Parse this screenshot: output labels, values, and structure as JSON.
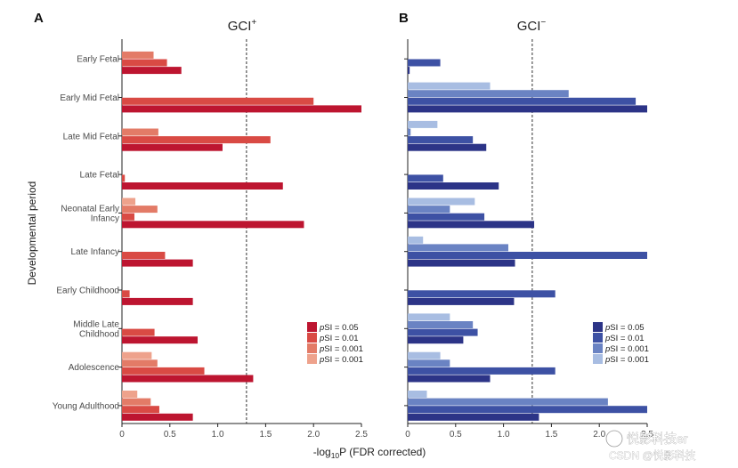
{
  "chart_data": {
    "type": "bar",
    "orientation": "horizontal",
    "ylabel": "Developmental period",
    "xlabel_main": "-log",
    "xlabel_sub": "10",
    "xlabel_rest": "P (FDR corrected)",
    "xlim": [
      0,
      2.5
    ],
    "x_ticks": [
      "0",
      "0.5",
      "1.0",
      "1.5",
      "2.0",
      "2.5"
    ],
    "threshold": 1.3,
    "categories": [
      [
        "Early Fetal"
      ],
      [
        "Early Mid Fetal"
      ],
      [
        "Late Mid Fetal"
      ],
      [
        "Late Fetal"
      ],
      [
        "Neonatal Early",
        "Infancy"
      ],
      [
        "Late Infancy"
      ],
      [
        "Early Childhood"
      ],
      [
        "Middle Late",
        "Childhood"
      ],
      [
        "Adolescence"
      ],
      [
        "Young Adulthood"
      ]
    ],
    "series_labels": [
      "0.05",
      "0.01",
      "0.001",
      "0.001"
    ],
    "legend_prefix": "p",
    "legend_prefix2": "SI = ",
    "panels": [
      {
        "letter": "A",
        "title_main": "GCI",
        "title_sup": "+",
        "colors": [
          "#bd1530",
          "#d94a44",
          "#e37b67",
          "#eea28c"
        ],
        "values": [
          [
            0.62,
            0.47,
            0.33,
            0
          ],
          [
            2.5,
            2.0,
            0,
            0
          ],
          [
            1.05,
            1.55,
            0.38,
            0
          ],
          [
            1.68,
            0.03,
            0,
            0
          ],
          [
            1.9,
            0.13,
            0.37,
            0.14
          ],
          [
            0.74,
            0.45,
            0,
            0
          ],
          [
            0.74,
            0.08,
            0,
            0
          ],
          [
            0.79,
            0.34,
            0,
            0
          ],
          [
            1.37,
            0.86,
            0.37,
            0.31
          ],
          [
            0.74,
            0.39,
            0.3,
            0.16
          ]
        ]
      },
      {
        "letter": "B",
        "title_main": "GCI",
        "title_sup": "−",
        "colors": [
          "#2c3487",
          "#3d51a4",
          "#6a83c3",
          "#a8bde2"
        ],
        "values": [
          [
            0.02,
            0.34,
            0,
            0
          ],
          [
            2.5,
            2.38,
            1.68,
            0.86
          ],
          [
            0.82,
            0.68,
            0.03,
            0.31
          ],
          [
            0.95,
            0.37,
            0,
            0
          ],
          [
            1.32,
            0.8,
            0.44,
            0.7
          ],
          [
            1.12,
            2.5,
            1.05,
            0.16
          ],
          [
            1.11,
            1.54,
            0,
            0
          ],
          [
            0.58,
            0.73,
            0.68,
            0.44
          ],
          [
            0.86,
            1.54,
            0.44,
            0.34
          ],
          [
            1.37,
            2.5,
            2.09,
            0.2
          ]
        ]
      }
    ]
  },
  "watermark": {
    "line1": "悦影科技er",
    "line2": "CSDN @悦影科技"
  }
}
